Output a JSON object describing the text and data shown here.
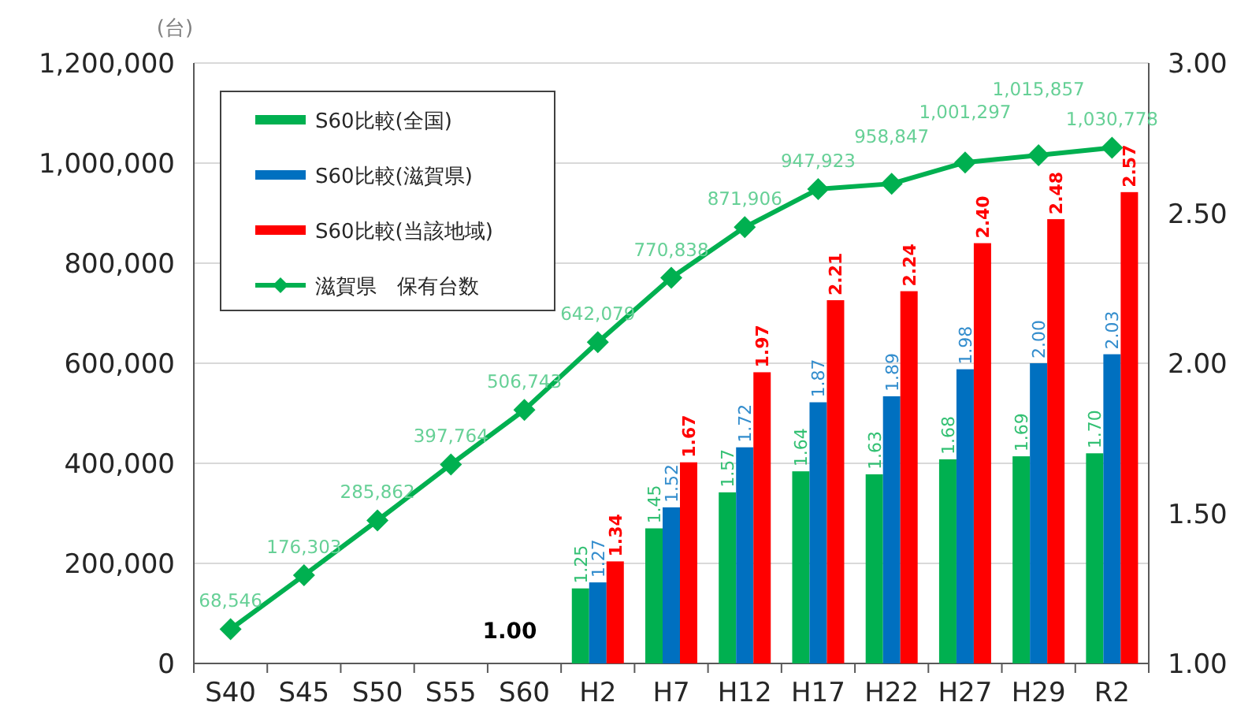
{
  "chart_data": {
    "type": "bar",
    "ylabel": "(台)",
    "categories": [
      "S40",
      "S45",
      "S50",
      "S55",
      "S60",
      "H2",
      "H7",
      "H12",
      "H17",
      "H22",
      "H27",
      "H29",
      "R2"
    ],
    "ylim": [
      0,
      1200000
    ],
    "yticks": [
      0,
      {
        "value": 200000,
        "label": "200,000"
      },
      {
        "value": 400000,
        "label": "400,000"
      },
      {
        "value": 600000,
        "label": "600,000"
      },
      {
        "value": 800000,
        "label": "800,000"
      },
      {
        "value": 1000000,
        "label": "1,000,000"
      },
      {
        "value": 1200000,
        "label": "1,200,000"
      }
    ],
    "y2lim": [
      1,
      3
    ],
    "y2ticks": [
      {
        "value": 1,
        "label": "1.00"
      },
      {
        "value": 1.5,
        "label": "1.50"
      },
      {
        "value": 2,
        "label": "2.00"
      },
      {
        "value": 2.5,
        "label": "2.50"
      },
      {
        "value": 3,
        "label": "3.00"
      }
    ],
    "grid": "y",
    "legend": "top left",
    "annotations": [
      {
        "text": "1.00",
        "x": "S60",
        "y": 1.0
      }
    ],
    "series": [
      {
        "name": "S60比較(全国)",
        "axis": "y2",
        "color": "#00b050",
        "values": [
          null,
          null,
          null,
          null,
          1.0,
          1.25,
          1.45,
          1.57,
          1.64,
          1.63,
          1.68,
          1.69,
          1.7
        ],
        "value_labels": [
          null,
          null,
          null,
          null,
          null,
          "1.25",
          "1.45",
          "1.57",
          "1.64",
          "1.63",
          "1.68",
          "1.69",
          "1.70"
        ]
      },
      {
        "name": "S60比較(滋賀県)",
        "axis": "y2",
        "color": "#0070c0",
        "values": [
          null,
          null,
          null,
          null,
          1.0,
          1.27,
          1.52,
          1.72,
          1.87,
          1.89,
          1.98,
          2.0,
          2.03
        ],
        "value_labels": [
          null,
          null,
          null,
          null,
          null,
          "1.27",
          "1.52",
          "1.72",
          "1.87",
          "1.89",
          "1.98",
          "2.00",
          "2.03"
        ]
      },
      {
        "name": "S60比較(当該地域)",
        "axis": "y2",
        "color": "#ff0000",
        "values": [
          null,
          null,
          null,
          null,
          1.0,
          1.34,
          1.67,
          1.97,
          2.21,
          2.24,
          2.4,
          2.48,
          2.57
        ],
        "value_labels": [
          null,
          null,
          null,
          null,
          null,
          "1.34",
          "1.67",
          "1.97",
          "2.21",
          "2.24",
          "2.40",
          "2.48",
          "2.57"
        ]
      },
      {
        "name": "滋賀県　保有台数",
        "type": "line",
        "axis": "y",
        "color": "#00b050",
        "marker": "diamond",
        "values": [
          68546,
          176303,
          285862,
          397764,
          506743,
          642079,
          770838,
          871906,
          947923,
          958847,
          1001297,
          1015857,
          1030778
        ],
        "value_labels": [
          "68,546",
          "176,303",
          "285,862",
          "397,764",
          "506,743",
          "642,079",
          "770,838",
          "871,906",
          "947,923",
          "958,847",
          "1,001,297",
          "1,015,857",
          "1,030,778"
        ]
      }
    ]
  }
}
